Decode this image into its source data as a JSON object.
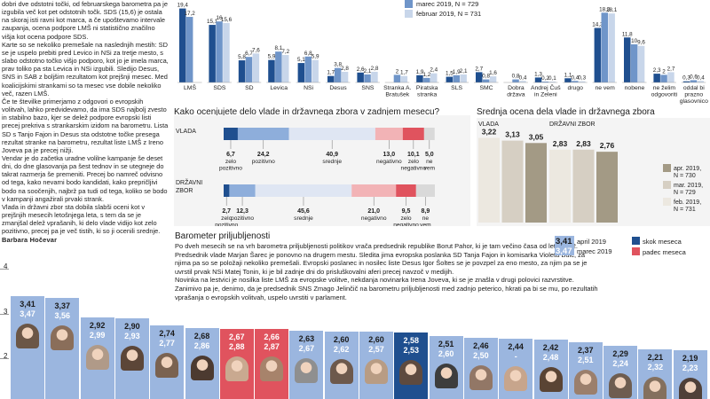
{
  "article": {
    "paragraphs": [
      "dobri dve odstotni točki, od februarskega barometra pa je izgubila več kot pet odstotnih točk. SDS (15,6) je ostala na skoraj isti ravni kot marca, a če upoštevamo intervale zaupanja, ocena podpore LMŠ ni statistično značilno višja kot ocena podpore SDS.",
      "Karte so se nekoliko premešale na naslednjih mestih: SD se je uspelo prebiti pred Levico in NSi za tretje mesto, s slabo odstotno točko višjo podporo, kot jo je imela marca, prav toliko pa sta Levica in NSi izgubili. Sledijo Desus, SNS in SAB z boljšim rezultatom kot prejšnji mesec. Med koalicijskimi strankami so ta mesec vse dobile nekoliko več, razen LMŠ.",
      "Če te številke primerjamo z odgovori o evropskih volitvah, lahko predvidevamo, da ima SDS najbolj zvesto in stabilno bazo, kjer se delež podpore evropski listi precej prekriva s strankarskim izidom na barometru. Lista SD s Tanjo Fajon in Desus sta odstotne točke presega rezultat stranke na barometru, rezultat liste LMŠ z Ireno Joveva pa je precej nižji.",
      "Vendar je do začetka uradne volilne kampanje še deset dni, do dne glasovanja pa šest tednov in se utegneje do takrat razmerja še premeniti. Precej bo namreč odvisno od tega, kako nevarni bodo kandidati, kako prepričljivi bodo na soočenjih, najbrž pa tudi od tega, koliko se bodo v kampanji angažirali prvaki strank.",
      "Vlada in državni zbor sta dobila slabši oceni kot v prejšnjih mesecih letošnjega leta, s tem da se je zmanjšal delež vprašanih, ki delo vlade vidijo kot zelo pozitivno, precej pa je več tistih, ki so ji ocenili srednje."
    ],
    "author": "Barbara Hočevar"
  },
  "top_chart": {
    "legend": [
      {
        "label": "marec 2019, N = 729",
        "color": "#6f95c9"
      },
      {
        "label": "februar 2019, N = 731",
        "color": "#c8d6ea"
      }
    ],
    "colors": [
      "#1f4f8f",
      "#6f95c9",
      "#c8d6ea"
    ],
    "groups": [
      {
        "name": "LMŠ",
        "values": [
          "19,4",
          "17,2",
          ""
        ]
      },
      {
        "name": "SDS",
        "values": [
          "15,1",
          "16",
          "15,6"
        ]
      },
      {
        "name": "SD",
        "values": [
          "5,8",
          "6,7",
          "7,6"
        ]
      },
      {
        "name": "Levica",
        "values": [
          "5,9",
          "8,1",
          "7,2"
        ]
      },
      {
        "name": "NSi",
        "values": [
          "5,1",
          "6,8",
          "5,9"
        ]
      },
      {
        "name": "Desus",
        "values": [
          "1,7",
          "3,8",
          "2,8"
        ]
      },
      {
        "name": "SNS",
        "values": [
          "2,6",
          "2,1",
          "2,8"
        ]
      },
      {
        "name": "Stranka A. Bratušek",
        "values": [
          "",
          "2",
          "1,7"
        ]
      },
      {
        "name": "Piratska stranka",
        "values": [
          "1,9",
          "1,2",
          "2,4"
        ]
      },
      {
        "name": "SLS",
        "values": [
          "1,5",
          "1,9",
          "2,1"
        ]
      },
      {
        "name": "SMC",
        "values": [
          "2,7",
          "0,8",
          "1,6"
        ]
      },
      {
        "name": "Dobra država",
        "values": [
          "",
          "0,8",
          "0,4"
        ]
      },
      {
        "name": "Andrej Čuš in Zeleni",
        "values": [
          "1,3",
          "0,2",
          "0,1"
        ]
      },
      {
        "name": "drugo",
        "values": [
          "1,1",
          "0,4",
          "0,3"
        ]
      },
      {
        "name": "ne vem",
        "values": [
          "14,3",
          "18,3",
          "18,1"
        ]
      },
      {
        "name": "nobene",
        "values": [
          "11,8",
          "10",
          "9,6"
        ]
      },
      {
        "name": "ne želim odgovoriti",
        "values": [
          "2,3",
          "2",
          "2,7"
        ]
      },
      {
        "name": "oddal bi prazno glasovnico",
        "values": [
          "0,3",
          "0,6",
          "0,4"
        ]
      }
    ]
  },
  "chart_data": [
    {
      "type": "bar",
      "title": "",
      "categories": [
        "LMŠ",
        "SDS",
        "SD",
        "Levica",
        "NSi",
        "Desus",
        "SNS",
        "Stranka A. Bratušek",
        "Piratska stranka",
        "SLS",
        "SMC",
        "Dobra država",
        "Andrej Čuš in Zeleni",
        "drugo",
        "ne vem",
        "nobene",
        "ne želim odgovoriti",
        "oddal bi prazno glasovnico"
      ],
      "series": [
        {
          "values": [
            19.4,
            15.1,
            5.8,
            5.9,
            5.1,
            1.7,
            2.6,
            null,
            1.9,
            1.5,
            2.7,
            null,
            1.3,
            1.1,
            14.3,
            11.8,
            2.3,
            0.3
          ]
        },
        {
          "name": "marec 2019, N = 729",
          "values": [
            17.2,
            16,
            6.7,
            8.1,
            6.8,
            3.8,
            2.1,
            2,
            1.2,
            1.9,
            0.8,
            0.8,
            0.2,
            0.4,
            18.3,
            10,
            2,
            0.6
          ]
        },
        {
          "name": "februar 2019, N = 731",
          "values": [
            null,
            15.6,
            7.6,
            7.2,
            5.9,
            2.8,
            2.8,
            1.7,
            2.4,
            2.1,
            1.6,
            0.4,
            0.1,
            0.3,
            18.1,
            9.6,
            2.7,
            0.4
          ]
        }
      ]
    },
    {
      "type": "bar",
      "title": "Kako ocenjujete delo vlade in državnega zbora v zadnjem mesecu?",
      "categories": [
        "zelo pozitivno",
        "pozitivno",
        "srednje",
        "negativno",
        "zelo negativno",
        "ne vem"
      ],
      "series": [
        {
          "name": "VLADA",
          "values": [
            6.7,
            24.2,
            40.9,
            13.0,
            10.1,
            5.0
          ]
        },
        {
          "name": "DRŽAVNI ZBOR",
          "values": [
            2.7,
            12.3,
            45.6,
            21.0,
            9.5,
            8.9
          ]
        }
      ]
    },
    {
      "type": "bar",
      "title": "Srednja ocena dela vlade in državnega zbora",
      "categories": [
        "VLADA",
        "DRŽAVNI ZBOR"
      ],
      "series": [
        {
          "name": "apr. 2019, N = 730",
          "values": [
            3.05,
            2.76
          ]
        },
        {
          "name": "mar. 2019, N = 729",
          "values": [
            3.13,
            2.83
          ]
        },
        {
          "name": "feb. 2019, N = 731",
          "values": [
            3.22,
            2.83
          ]
        }
      ],
      "ylim": [
        0,
        4
      ]
    },
    {
      "type": "bar",
      "title": "Barometer priljubljenosti",
      "series": [
        {
          "name": "april 2019",
          "values": [
            3.41,
            3.37,
            2.92,
            2.9,
            2.74,
            2.68,
            2.67,
            2.66,
            2.63,
            2.6,
            2.6,
            2.58,
            2.51,
            2.46,
            2.44,
            2.42,
            2.37,
            2.29,
            2.21,
            2.19
          ]
        },
        {
          "name": "marec 2019",
          "values": [
            3.47,
            3.56,
            2.99,
            2.93,
            2.77,
            2.86,
            2.88,
            2.87,
            2.67,
            2.62,
            2.57,
            2.53,
            2.6,
            2.5,
            null,
            2.48,
            2.51,
            2.24,
            2.32,
            2.23
          ]
        }
      ],
      "ylim": [
        1.5,
        4
      ]
    }
  ],
  "vlada": {
    "title": "Kako ocenjujete delo vlade in državnega zbora v zadnjem mesecu?",
    "rows": [
      {
        "label": "VLADA",
        "segments": [
          {
            "value": 6.7,
            "label": "6,7",
            "text": "zelo pozitivno",
            "color": "#1f4f8f"
          },
          {
            "value": 24.2,
            "label": "24,2",
            "text": "pozitivno",
            "color": "#8eaedb"
          },
          {
            "value": 40.9,
            "label": "40,9",
            "text": "srednje",
            "color": "#dfe6f3"
          },
          {
            "value": 13.0,
            "label": "13,0",
            "text": "negativno",
            "color": "#f2b3b6"
          },
          {
            "value": 10.1,
            "label": "10,1",
            "text": "zelo negativno",
            "color": "#e0535e"
          },
          {
            "value": 5.0,
            "label": "5,0",
            "text": "ne vem",
            "color": "#d9d9d9"
          }
        ]
      },
      {
        "label": "DRŽAVNI ZBOR",
        "segments": [
          {
            "value": 2.7,
            "label": "2,7",
            "text": "zelo pozitivno",
            "color": "#1f4f8f"
          },
          {
            "value": 12.3,
            "label": "12,3",
            "text": "pozitivno",
            "color": "#8eaedb"
          },
          {
            "value": 45.6,
            "label": "45,6",
            "text": "srednje",
            "color": "#dfe6f3"
          },
          {
            "value": 21.0,
            "label": "21,0",
            "text": "negativno",
            "color": "#f2b3b6"
          },
          {
            "value": 9.5,
            "label": "9,5",
            "text": "zelo negativno",
            "color": "#e0535e"
          },
          {
            "value": 8.9,
            "label": "8,9",
            "text": "ne vem",
            "color": "#d9d9d9"
          }
        ]
      }
    ]
  },
  "srednja": {
    "title": "Srednja ocena dela vlade in državnega zbora",
    "groups": [
      {
        "label": "VLADA",
        "values": [
          "3,22",
          "3,13",
          "3,05"
        ]
      },
      {
        "label": "DRŽAVNI ZBOR",
        "values": [
          "2,83",
          "2,83",
          "2,76"
        ]
      }
    ],
    "colors": [
      "#ece8e0",
      "#d6cfc3",
      "#a39a85"
    ],
    "legend": [
      {
        "label": "apr. 2019, N = 730",
        "color": "#a39a85"
      },
      {
        "label": "mar. 2019, N = 729",
        "color": "#d6cfc3"
      },
      {
        "label": "feb. 2019, N = 731",
        "color": "#ece8e0"
      }
    ]
  },
  "barometer": {
    "title": "Barometer priljubljenosti",
    "text": "Po dveh mesecih se na vrh barometra priljubljenosti politikov vrača predsednik republike Borut Pahor, ki je tam večino časa od leta 2012. Predsednik vlade Marjan Šarec je ponovno na drugem mestu. Sledita jima evropska poslanka SD Tanja Fajon in komisarka Violeta Bulc, za njima pa so se položaji nekoliko premešali. Evropski poslanec in nosilec liste Desus Igor Šoltes se je povzpel za eno mesto, za njim pa se je uvrstil prvak NSi Matej Tonin, ki je bil zadnje dni do prisluškovalni aferi precej navzoč v medijih.",
    "text2": "Novinka na lestvici je nosilka liste LMŠ za evropske volitve, nekdanja novinarka Irena Joveva, ki se je znašla v drugi polovici razvrstitve. Zanimivo pa je, denimo, da je predsednik SNS Zmago Jelinčič na barometru priljubljenosti med zadnjo peterico, hkrati pa bi se mu, po rezultatih vprašanja o evropskih volitvah, uspelo uvrstiti v parlament.",
    "legend_values": {
      "v1": "3,41",
      "v2": "3,47"
    },
    "legend_dates": {
      "d1": "april 2019",
      "d2": "marec 2019"
    },
    "legend_items": [
      {
        "label": "skok meseca",
        "color": "#1f4f8f"
      },
      {
        "label": "padec meseca",
        "color": "#e0535e"
      }
    ],
    "axis": [
      "4",
      "3",
      "2"
    ],
    "politicians": [
      {
        "april": "3,41",
        "march": "3,47",
        "state": "normal"
      },
      {
        "april": "3,37",
        "march": "3,56",
        "state": "normal"
      },
      {
        "april": "2,92",
        "march": "2,99",
        "state": "normal"
      },
      {
        "april": "2,90",
        "march": "2,93",
        "state": "normal"
      },
      {
        "april": "2,74",
        "march": "2,77",
        "state": "normal"
      },
      {
        "april": "2,68",
        "march": "2,86",
        "state": "normal"
      },
      {
        "april": "2,67",
        "march": "2,88",
        "state": "fall"
      },
      {
        "april": "2,66",
        "march": "2,87",
        "state": "fall"
      },
      {
        "april": "2,63",
        "march": "2,67",
        "state": "normal"
      },
      {
        "april": "2,60",
        "march": "2,62",
        "state": "normal"
      },
      {
        "april": "2,60",
        "march": "2,57",
        "state": "normal"
      },
      {
        "april": "2,58",
        "march": "2,53",
        "state": "jump"
      },
      {
        "april": "2,51",
        "march": "2,60",
        "state": "normal"
      },
      {
        "april": "2,46",
        "march": "2,50",
        "state": "normal"
      },
      {
        "april": "2,44",
        "march": "-",
        "state": "normal"
      },
      {
        "april": "2,42",
        "march": "2,48",
        "state": "normal"
      },
      {
        "april": "2,37",
        "march": "2,51",
        "state": "normal"
      },
      {
        "april": "2,29",
        "march": "2,24",
        "state": "normal"
      },
      {
        "april": "2,21",
        "march": "2,32",
        "state": "normal"
      },
      {
        "april": "2,19",
        "march": "2,23",
        "state": "normal"
      }
    ]
  }
}
